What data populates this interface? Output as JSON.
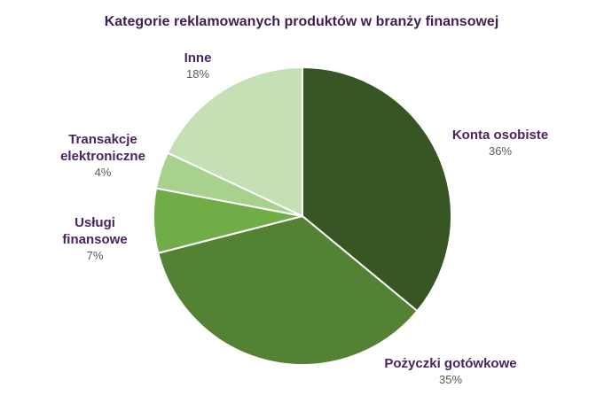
{
  "chart_data": {
    "type": "pie",
    "title": "Kategorie reklamowanych produktów w branży finansowej",
    "categories": [
      "Konta osobiste",
      "Pożyczki gotówkowe",
      "Usługi finansowe",
      "Transakcje elektroniczne",
      "Inne"
    ],
    "label_lines": [
      [
        "Konta osobiste"
      ],
      [
        "Pożyczki gotówkowe"
      ],
      [
        "Usługi",
        "finansowe"
      ],
      [
        "Transakcje",
        "elektroniczne"
      ],
      [
        "Inne"
      ]
    ],
    "values": [
      36,
      35,
      7,
      4,
      18
    ],
    "value_labels": [
      "36%",
      "35%",
      "7%",
      "4%",
      "18%"
    ],
    "colors": [
      "#375623",
      "#548235",
      "#70ad47",
      "#a9d18e",
      "#c5e0b4"
    ],
    "start_angle": "12 o'clock",
    "direction": "clockwise",
    "legend": "none, data labels outside slices"
  }
}
